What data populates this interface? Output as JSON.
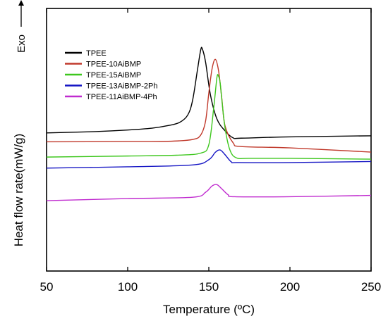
{
  "chart_data": {
    "type": "line",
    "title": "",
    "xlabel": "Temperature (ºC)",
    "ylabel": "Heat flow rate(mW/g)",
    "exo_label": "Exo",
    "xlim": [
      50,
      250
    ],
    "xticks": [
      "50",
      "100",
      "150",
      "200",
      "250"
    ],
    "grid": false,
    "legend_position": "top-left",
    "y_units": "relative (no numeric ticks)",
    "ylim": [
      0,
      100
    ],
    "series": [
      {
        "name": "TPEE",
        "color": "#000000",
        "x": [
          50,
          80,
          100,
          115,
          125,
          132,
          137,
          140,
          143,
          145,
          146,
          148,
          151,
          155,
          160,
          165,
          170,
          200,
          250
        ],
        "y": [
          52.6,
          53.1,
          53.7,
          54.4,
          55.4,
          56.6,
          59.4,
          65.0,
          76.6,
          84.2,
          84.6,
          79.6,
          67.1,
          57.9,
          53.4,
          50.7,
          50.6,
          51.1,
          51.5
        ]
      },
      {
        "name": "TPEE-10AiBMP",
        "color": "#c0392b",
        "x": [
          50,
          100,
          125,
          140,
          145,
          148,
          150,
          152,
          154,
          156,
          158,
          160,
          165,
          170,
          200,
          250
        ],
        "y": [
          49.2,
          49.3,
          49.4,
          50.1,
          51.8,
          57.1,
          67.8,
          77.0,
          80.6,
          76.3,
          65.8,
          55.3,
          48.8,
          47.4,
          46.9,
          45.3
        ]
      },
      {
        "name": "TPEE-15AiBMP",
        "color": "#3ec71e",
        "x": [
          50,
          100,
          130,
          145,
          150,
          153,
          155,
          156,
          157,
          158,
          160,
          163,
          167,
          175,
          200,
          250
        ],
        "y": [
          43.4,
          43.8,
          44.1,
          44.9,
          48.1,
          62.0,
          73.7,
          74.2,
          71.6,
          65.4,
          54.5,
          46.1,
          43.1,
          42.9,
          42.9,
          42.6
        ]
      },
      {
        "name": "TPEE-13AiBMP-2Ph",
        "color": "#1515c4",
        "x": [
          50,
          100,
          140,
          150,
          154,
          157,
          160,
          164,
          168,
          200,
          250
        ],
        "y": [
          39.2,
          39.7,
          40.4,
          42.4,
          45.2,
          46.1,
          44.3,
          41.5,
          41.3,
          41.3,
          41.7
        ]
      },
      {
        "name": "TPEE-11AiBMP-4Ph",
        "color": "#c02bcf",
        "x": [
          50,
          100,
          140,
          148,
          152,
          155,
          158,
          162,
          166,
          200,
          250
        ],
        "y": [
          26.8,
          27.6,
          28.1,
          30.0,
          32.4,
          32.9,
          31.3,
          29.0,
          28.3,
          28.3,
          28.8
        ]
      }
    ]
  }
}
